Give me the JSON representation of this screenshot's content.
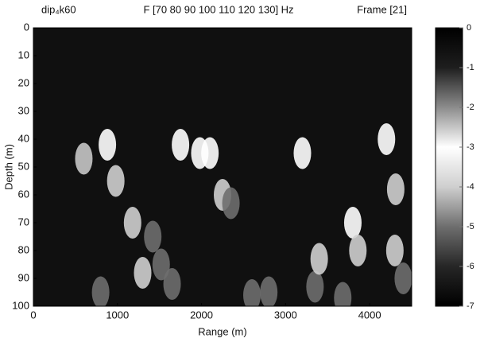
{
  "chart_data": {
    "type": "heatmap",
    "title_left": "dip₄k60",
    "title_middle": "F [70  80  90  100  110  120  130] Hz",
    "title_right": "Frame [21]",
    "x_label": "Range (m)",
    "y_label": "Depth (m)",
    "xlim": [
      0,
      4500
    ],
    "xticks": [
      0,
      1000,
      2000,
      3000,
      4000
    ],
    "ylim": [
      0,
      100
    ],
    "yticks": [
      0,
      10,
      20,
      30,
      40,
      50,
      60,
      70,
      80,
      90,
      100
    ],
    "y_reversed": true,
    "clim": [
      -7,
      0
    ],
    "cticks": [
      0,
      -1,
      -2,
      -3,
      -4,
      -5,
      -6,
      -7
    ],
    "colormap": [
      {
        "value": 0,
        "color": "#000000"
      },
      {
        "value": -1,
        "color": "#1e1e1e"
      },
      {
        "value": -2,
        "color": "#8c8c8c"
      },
      {
        "value": -3,
        "color": "#ffffff"
      },
      {
        "value": -4,
        "color": "#cfcfcf"
      },
      {
        "value": -5,
        "color": "#6e6e6e"
      },
      {
        "value": -6,
        "color": "#262626"
      },
      {
        "value": -7,
        "color": "#000000"
      }
    ],
    "background": "#101010",
    "x": [
      600,
      880,
      980,
      800,
      1180,
      1300,
      1420,
      1520,
      1650,
      1750,
      1980,
      2100,
      2250,
      2350,
      2600,
      2800,
      3200,
      3350,
      3400,
      3680,
      3800,
      3860,
      4200,
      4310,
      4300,
      4400
    ],
    "y": [
      47,
      42,
      55,
      95,
      70,
      88,
      75,
      85,
      92,
      42,
      45,
      45,
      60,
      63,
      96,
      95,
      45,
      93,
      83,
      97,
      70,
      80,
      40,
      58,
      80,
      90
    ],
    "values": [
      -2.5,
      -3,
      -4,
      -5,
      -4,
      -4,
      -5,
      -5,
      -5,
      -3,
      -3,
      -3,
      -4,
      -5,
      -5,
      -5,
      -3,
      -5,
      -4,
      -5,
      -3,
      -4,
      -3,
      -4,
      -4,
      -5
    ]
  }
}
